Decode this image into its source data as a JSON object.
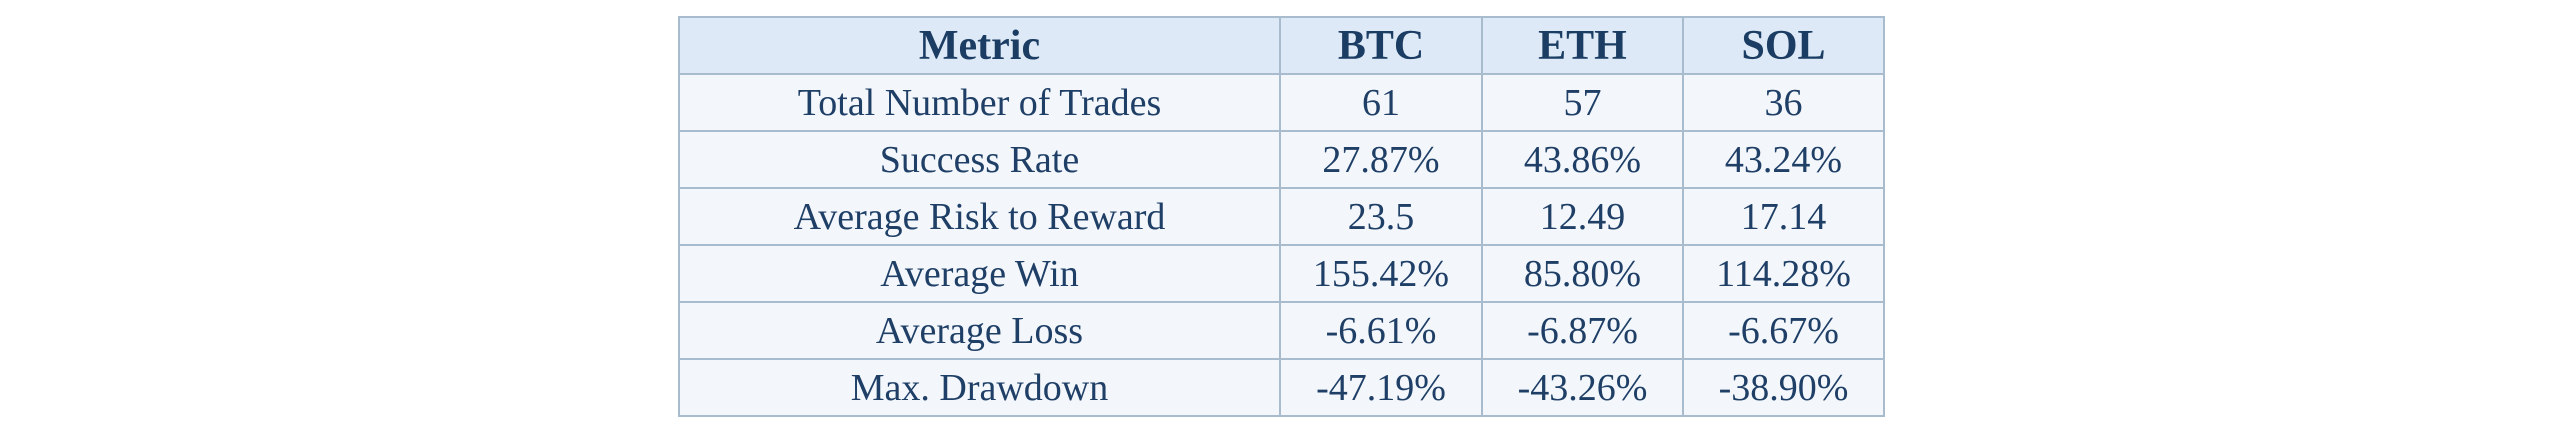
{
  "table": {
    "headers": [
      "Metric",
      "BTC",
      "ETH",
      "SOL"
    ],
    "rows": [
      [
        "Total Number of Trades",
        "61",
        "57",
        "36"
      ],
      [
        "Success Rate",
        "27.87%",
        "43.86%",
        "43.24%"
      ],
      [
        "Average Risk to Reward",
        "23.5",
        "12.49",
        "17.14"
      ],
      [
        "Average Win",
        "155.42%",
        "85.80%",
        "114.28%"
      ],
      [
        "Average Loss",
        "-6.61%",
        "-6.87%",
        "-6.67%"
      ],
      [
        "Max. Drawdown",
        "-47.19%",
        "-43.26%",
        "-38.90%"
      ]
    ]
  },
  "colors": {
    "header_bg": "#dde9f6",
    "cell_bg": "#f3f7fc",
    "border": "#a9bccd",
    "text": "#1f3f66"
  }
}
